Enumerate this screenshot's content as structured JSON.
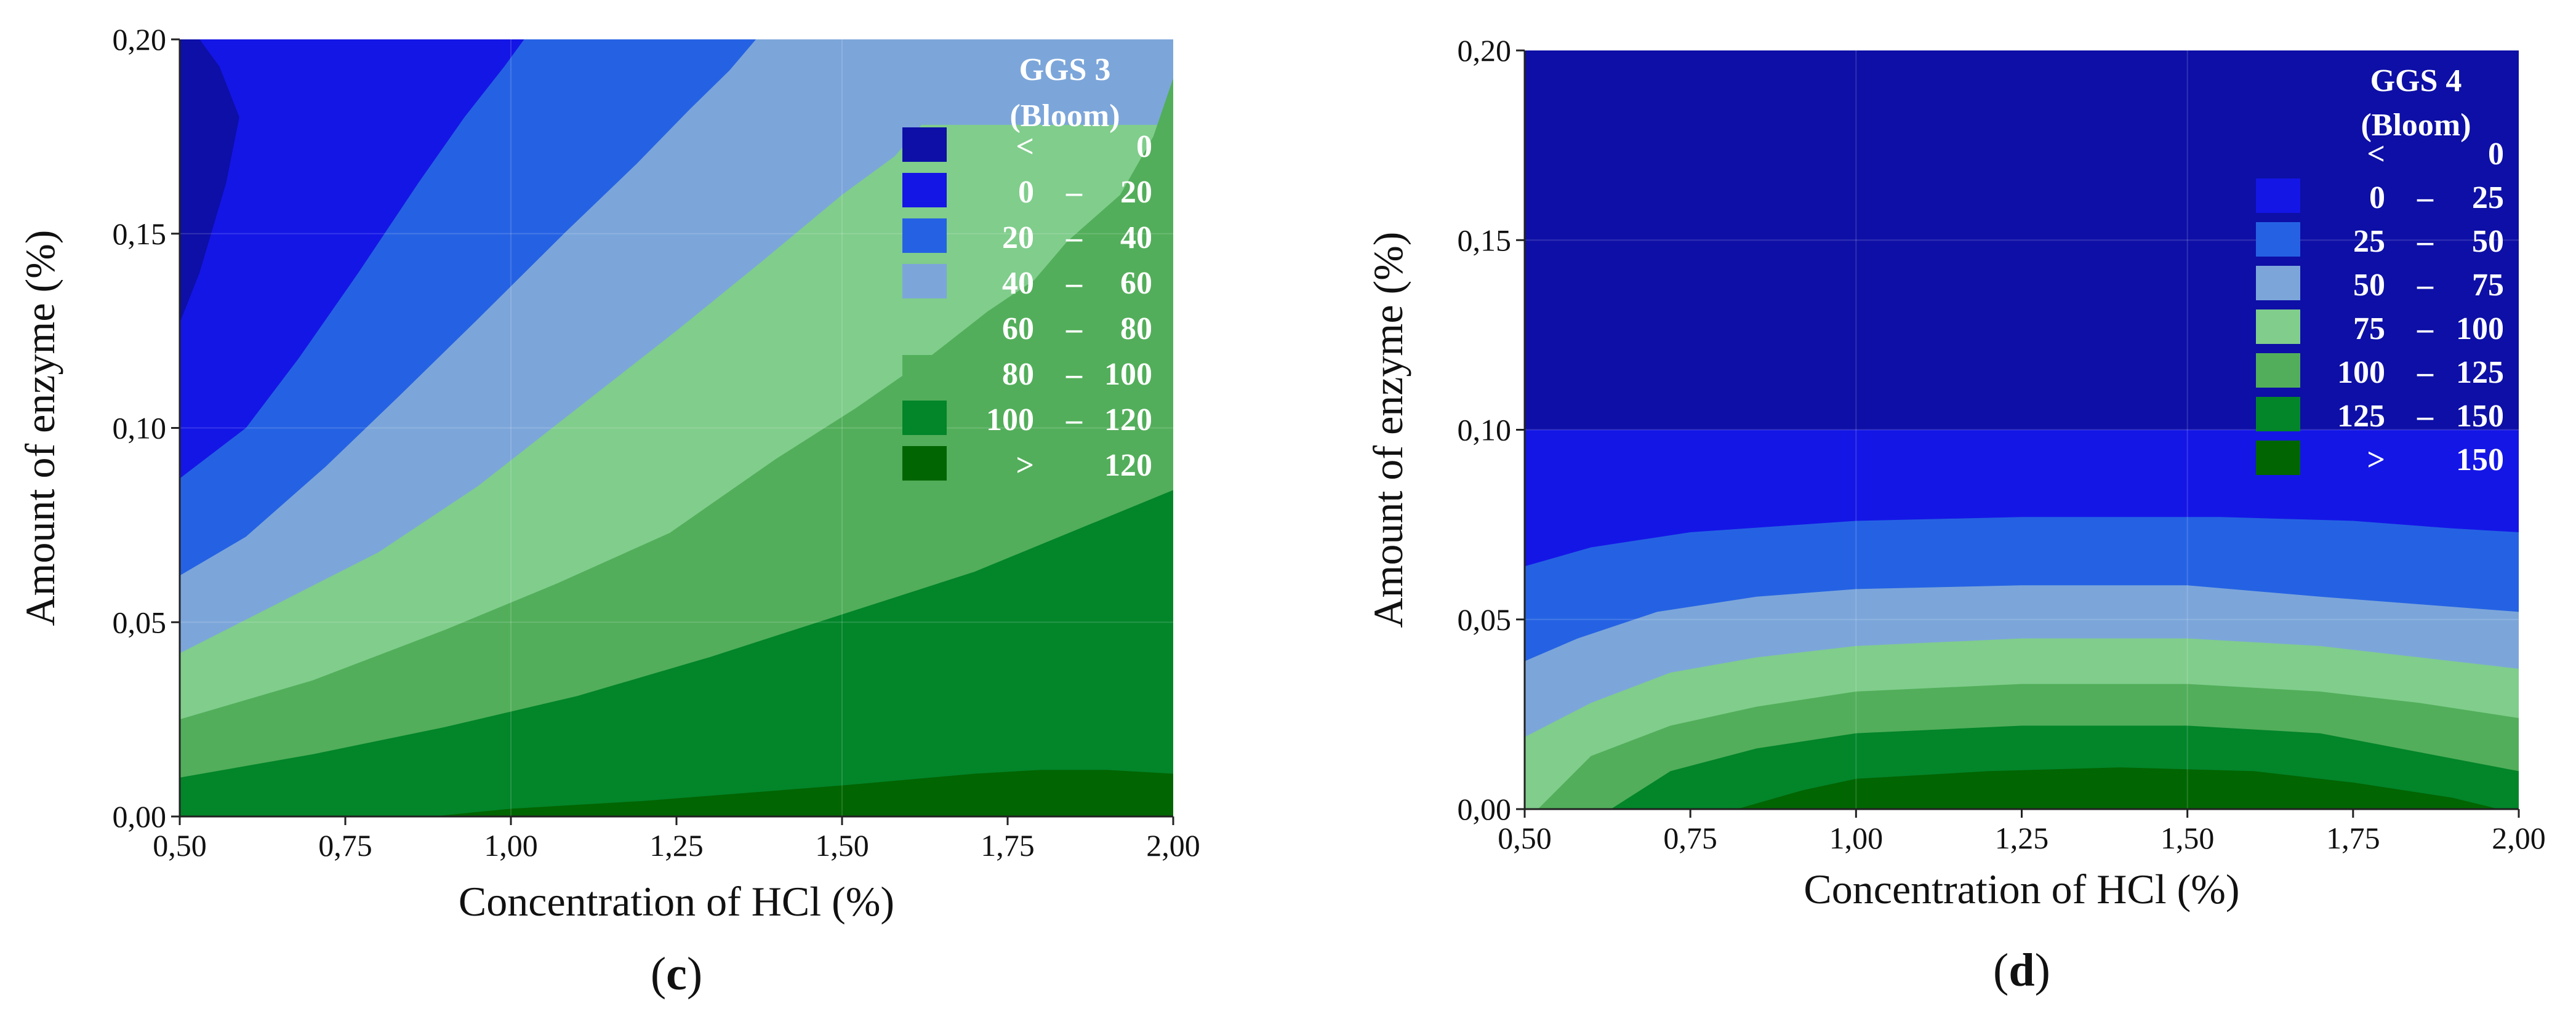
{
  "colors": {
    "c0": "#0d0fa6",
    "c1": "#1416e6",
    "c2": "#2562e3",
    "c3": "#7ca6da",
    "c4": "#80cd8c",
    "c5": "#52ae5a",
    "c6": "#03852a",
    "c7": "#016501"
  },
  "chart_data": [
    {
      "type": "contour",
      "panel": "c",
      "caption_open": "(",
      "caption_letter": "c",
      "caption_close": ")",
      "xlabel": "Concentration of HCl (%)",
      "ylabel": "Amount of enzyme (%)",
      "xlim": [
        0.5,
        2.0
      ],
      "ylim": [
        0.0,
        0.2
      ],
      "xticks": [
        "0,50",
        "0,75",
        "1,00",
        "1,25",
        "1,50",
        "1,75",
        "2,00"
      ],
      "yticks": [
        "0,00",
        "0,05",
        "0,10",
        "0,15",
        "0,20"
      ],
      "legend_title": [
        "GGS 3",
        "(Bloom)"
      ],
      "legend_ranges": [
        {
          "lo": "<",
          "sep": "",
          "hi": "0",
          "color": "c0"
        },
        {
          "lo": "0",
          "sep": "–",
          "hi": "20",
          "color": "c1"
        },
        {
          "lo": "20",
          "sep": "–",
          "hi": "40",
          "color": "c2"
        },
        {
          "lo": "40",
          "sep": "–",
          "hi": "60",
          "color": "c3"
        },
        {
          "lo": "60",
          "sep": "–",
          "hi": "80",
          "color": "c4"
        },
        {
          "lo": "80",
          "sep": "–",
          "hi": "100",
          "color": "c5"
        },
        {
          "lo": "100",
          "sep": "–",
          "hi": "120",
          "color": "c6"
        },
        {
          "lo": ">",
          "sep": "",
          "hi": "120",
          "color": "c7"
        }
      ],
      "regions": [
        {
          "color": "c0",
          "poly": [
            [
              0.5,
              0.2
            ],
            [
              0.5,
              0.127
            ],
            [
              0.53,
              0.14
            ],
            [
              0.57,
              0.163
            ],
            [
              0.59,
              0.18
            ],
            [
              0.56,
              0.193
            ],
            [
              0.53,
              0.2
            ]
          ]
        },
        {
          "color": "c2",
          "poly": [
            [
              0.5,
              0.087
            ],
            [
              0.6,
              0.1
            ],
            [
              0.68,
              0.118
            ],
            [
              0.77,
              0.14
            ],
            [
              0.86,
              0.163
            ],
            [
              0.93,
              0.18
            ],
            [
              0.99,
              0.193
            ],
            [
              1.02,
              0.2
            ],
            [
              2.0,
              0.2
            ],
            [
              2.0,
              0.0
            ],
            [
              0.5,
              0.0
            ]
          ]
        },
        {
          "color": "c3",
          "poly": [
            [
              0.5,
              0.062
            ],
            [
              0.6,
              0.072
            ],
            [
              0.72,
              0.09
            ],
            [
              0.83,
              0.108
            ],
            [
              0.95,
              0.128
            ],
            [
              1.08,
              0.15
            ],
            [
              1.19,
              0.168
            ],
            [
              1.27,
              0.182
            ],
            [
              1.33,
              0.192
            ],
            [
              1.37,
              0.2
            ],
            [
              2.0,
              0.2
            ],
            [
              2.0,
              0.0
            ],
            [
              0.5,
              0.0
            ]
          ]
        },
        {
          "color": "c4",
          "poly": [
            [
              0.5,
              0.042
            ],
            [
              0.65,
              0.055
            ],
            [
              0.8,
              0.068
            ],
            [
              0.95,
              0.085
            ],
            [
              1.1,
              0.105
            ],
            [
              1.25,
              0.125
            ],
            [
              1.38,
              0.143
            ],
            [
              1.5,
              0.16
            ],
            [
              1.58,
              0.17
            ],
            [
              1.62,
              0.178
            ],
            [
              2.0,
              0.178
            ],
            [
              2.0,
              0.0
            ],
            [
              0.5,
              0.0
            ]
          ]
        },
        {
          "color": "c5",
          "poly": [
            [
              0.5,
              0.025
            ],
            [
              0.7,
              0.035
            ],
            [
              0.9,
              0.048
            ],
            [
              1.07,
              0.06
            ],
            [
              1.24,
              0.073
            ],
            [
              1.4,
              0.092
            ],
            [
              1.52,
              0.105
            ],
            [
              1.63,
              0.118
            ],
            [
              1.72,
              0.13
            ],
            [
              1.79,
              0.138
            ],
            [
              1.84,
              0.148
            ],
            [
              1.92,
              0.16
            ],
            [
              1.97,
              0.175
            ],
            [
              2.0,
              0.19
            ],
            [
              2.0,
              0.0
            ],
            [
              0.5,
              0.0
            ]
          ]
        },
        {
          "color": "c6",
          "poly": [
            [
              0.5,
              0.01
            ],
            [
              0.7,
              0.016
            ],
            [
              0.9,
              0.023
            ],
            [
              1.1,
              0.031
            ],
            [
              1.3,
              0.041
            ],
            [
              1.5,
              0.052
            ],
            [
              1.7,
              0.063
            ],
            [
              1.9,
              0.077
            ],
            [
              2.0,
              0.084
            ],
            [
              2.0,
              0.0
            ],
            [
              0.5,
              0.0
            ]
          ]
        },
        {
          "color": "c7",
          "poly": [
            [
              0.88,
              0.0
            ],
            [
              1.0,
              0.002
            ],
            [
              1.2,
              0.004
            ],
            [
              1.5,
              0.008
            ],
            [
              1.7,
              0.011
            ],
            [
              1.8,
              0.012
            ],
            [
              1.9,
              0.012
            ],
            [
              2.0,
              0.011
            ],
            [
              2.0,
              0.0
            ]
          ]
        }
      ]
    },
    {
      "type": "contour",
      "panel": "d",
      "caption_open": "(",
      "caption_letter": "d",
      "caption_close": ")",
      "xlabel": "Concentration of HCl (%)",
      "ylabel": "Amount of enzyme (%)",
      "xlim": [
        0.5,
        2.0
      ],
      "ylim": [
        0.0,
        0.2
      ],
      "xticks": [
        "0,50",
        "0,75",
        "1,00",
        "1,25",
        "1,50",
        "1,75",
        "2,00"
      ],
      "yticks": [
        "0,00",
        "0,05",
        "0,10",
        "0,15",
        "0,20"
      ],
      "legend_title": [
        "GGS 4",
        "(Bloom)"
      ],
      "legend_ranges": [
        {
          "lo": "<",
          "sep": "",
          "hi": "0",
          "color": "c0"
        },
        {
          "lo": "0",
          "sep": "–",
          "hi": "25",
          "color": "c1"
        },
        {
          "lo": "25",
          "sep": "–",
          "hi": "50",
          "color": "c2"
        },
        {
          "lo": "50",
          "sep": "–",
          "hi": "75",
          "color": "c3"
        },
        {
          "lo": "75",
          "sep": "–",
          "hi": "100",
          "color": "c4"
        },
        {
          "lo": "100",
          "sep": "–",
          "hi": "125",
          "color": "c5"
        },
        {
          "lo": "125",
          "sep": "–",
          "hi": "150",
          "color": "c6"
        },
        {
          "lo": ">",
          "sep": "",
          "hi": "150",
          "color": "c7"
        }
      ],
      "regions": [
        {
          "color": "c0",
          "poly": [
            [
              0.5,
              0.2
            ],
            [
              2.0,
              0.2
            ],
            [
              2.0,
              0.0
            ],
            [
              0.5,
              0.0
            ]
          ]
        },
        {
          "color": "c1",
          "poly": [
            [
              0.5,
              0.1
            ],
            [
              2.0,
              0.1
            ],
            [
              2.0,
              0.0
            ],
            [
              0.5,
              0.0
            ]
          ]
        },
        {
          "color": "c2",
          "poly": [
            [
              0.5,
              0.064
            ],
            [
              0.6,
              0.069
            ],
            [
              0.75,
              0.073
            ],
            [
              1.0,
              0.076
            ],
            [
              1.25,
              0.077
            ],
            [
              1.55,
              0.077
            ],
            [
              1.75,
              0.076
            ],
            [
              1.9,
              0.074
            ],
            [
              2.0,
              0.073
            ],
            [
              2.0,
              0.0
            ],
            [
              0.5,
              0.0
            ]
          ]
        },
        {
          "color": "c3",
          "poly": [
            [
              0.5,
              0.039
            ],
            [
              0.58,
              0.045
            ],
            [
              0.7,
              0.052
            ],
            [
              0.85,
              0.056
            ],
            [
              1.0,
              0.058
            ],
            [
              1.25,
              0.059
            ],
            [
              1.5,
              0.059
            ],
            [
              1.7,
              0.056
            ],
            [
              1.85,
              0.054
            ],
            [
              2.0,
              0.052
            ],
            [
              2.0,
              0.0
            ],
            [
              0.5,
              0.0
            ]
          ]
        },
        {
          "color": "c4",
          "poly": [
            [
              0.5,
              0.019
            ],
            [
              0.6,
              0.028
            ],
            [
              0.72,
              0.036
            ],
            [
              0.85,
              0.04
            ],
            [
              1.0,
              0.043
            ],
            [
              1.25,
              0.045
            ],
            [
              1.5,
              0.045
            ],
            [
              1.7,
              0.043
            ],
            [
              1.85,
              0.04
            ],
            [
              2.0,
              0.037
            ],
            [
              2.0,
              0.0
            ],
            [
              0.5,
              0.0
            ]
          ]
        },
        {
          "color": "c5",
          "poly": [
            [
              0.52,
              0.0
            ],
            [
              0.6,
              0.014
            ],
            [
              0.72,
              0.022
            ],
            [
              0.85,
              0.027
            ],
            [
              1.0,
              0.031
            ],
            [
              1.25,
              0.033
            ],
            [
              1.5,
              0.033
            ],
            [
              1.7,
              0.031
            ],
            [
              1.85,
              0.028
            ],
            [
              2.0,
              0.024
            ],
            [
              2.0,
              0.0
            ]
          ]
        },
        {
          "color": "c6",
          "poly": [
            [
              0.63,
              0.0
            ],
            [
              0.72,
              0.01
            ],
            [
              0.85,
              0.016
            ],
            [
              1.0,
              0.02
            ],
            [
              1.25,
              0.022
            ],
            [
              1.5,
              0.022
            ],
            [
              1.7,
              0.02
            ],
            [
              1.85,
              0.015
            ],
            [
              2.0,
              0.01
            ],
            [
              2.0,
              0.0
            ]
          ]
        },
        {
          "color": "c7",
          "poly": [
            [
              0.82,
              0.0
            ],
            [
              0.92,
              0.005
            ],
            [
              1.0,
              0.008
            ],
            [
              1.2,
              0.01
            ],
            [
              1.4,
              0.011
            ],
            [
              1.6,
              0.01
            ],
            [
              1.75,
              0.007
            ],
            [
              1.9,
              0.003
            ],
            [
              1.97,
              0.0
            ]
          ]
        }
      ]
    }
  ]
}
